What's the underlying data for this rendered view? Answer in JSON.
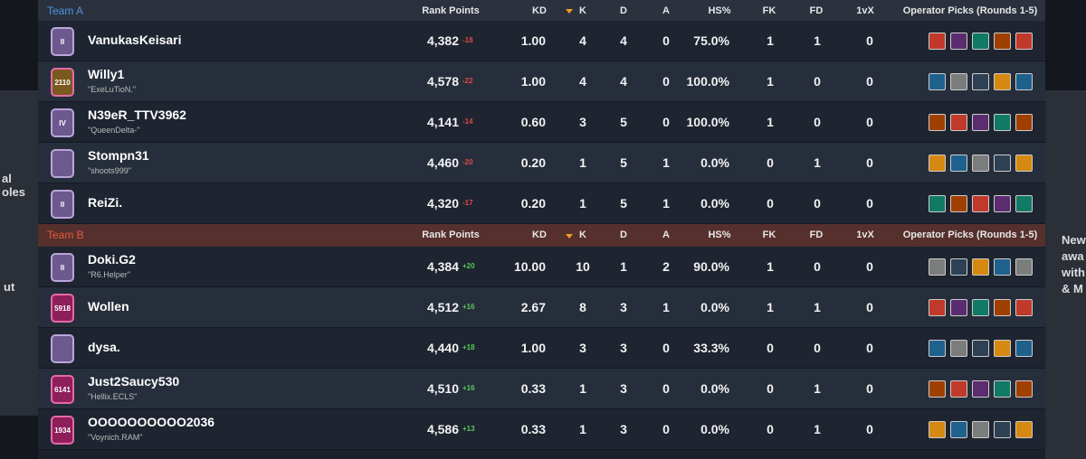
{
  "side_fragments": {
    "left": [
      "al",
      "oles",
      "ut"
    ],
    "right": [
      "New",
      "awa",
      "with",
      "& M"
    ]
  },
  "teams": [
    {
      "name": "Team A",
      "columns": {
        "rank_points": "Rank Points",
        "kd": "KD",
        "k": "K",
        "d": "D",
        "a": "A",
        "hs": "HS%",
        "fk": "FK",
        "fd": "FD",
        "onevx": "1vX",
        "operators": "Operator Picks (Rounds 1-5)"
      },
      "players": [
        {
          "badge": "II",
          "name": "VanukasKeisari",
          "rank_points": "4,382",
          "delta": "-18",
          "kd": "1.00",
          "k": "4",
          "d": "4",
          "a": "0",
          "hs": "75.0%",
          "fk": "1",
          "fd": "1",
          "onevx": "0"
        },
        {
          "badge": "2110",
          "name": "Willy1",
          "subtitle": "\"ExeLuTioN.\"",
          "rank_points": "4,578",
          "delta": "-22",
          "kd": "1.00",
          "k": "4",
          "d": "4",
          "a": "0",
          "hs": "100.0%",
          "fk": "1",
          "fd": "0",
          "onevx": "0"
        },
        {
          "badge": "IV",
          "name": "N39eR_TTV3962",
          "subtitle": "\"QueenDelta-\"",
          "rank_points": "4,141",
          "delta": "-14",
          "kd": "0.60",
          "k": "3",
          "d": "5",
          "a": "0",
          "hs": "100.0%",
          "fk": "1",
          "fd": "0",
          "onevx": "0"
        },
        {
          "name": "Stompn31",
          "subtitle": "\"shoots999\"",
          "rank_points": "4,460",
          "delta": "-20",
          "kd": "0.20",
          "k": "1",
          "d": "5",
          "a": "1",
          "hs": "0.0%",
          "fk": "0",
          "fd": "1",
          "onevx": "0"
        },
        {
          "badge": "II",
          "name": "ReiZi.",
          "rank_points": "4,320",
          "delta": "-17",
          "kd": "0.20",
          "k": "1",
          "d": "5",
          "a": "1",
          "hs": "0.0%",
          "fk": "0",
          "fd": "0",
          "onevx": "0"
        }
      ]
    },
    {
      "name": "Team B",
      "columns": {
        "rank_points": "Rank Points",
        "kd": "KD",
        "k": "K",
        "d": "D",
        "a": "A",
        "hs": "HS%",
        "fk": "FK",
        "fd": "FD",
        "onevx": "1vX",
        "operators": "Operator Picks (Rounds 1-5)"
      },
      "players": [
        {
          "badge": "II",
          "name": "Doki.G2",
          "subtitle": "\"R6.Helper\"",
          "rank_points": "4,384",
          "delta": "+20",
          "kd": "10.00",
          "k": "10",
          "d": "1",
          "a": "2",
          "hs": "90.0%",
          "fk": "1",
          "fd": "0",
          "onevx": "0"
        },
        {
          "badge": "5918",
          "name": "Wollen",
          "rank_points": "4,512",
          "delta": "+16",
          "kd": "2.67",
          "k": "8",
          "d": "3",
          "a": "1",
          "hs": "0.0%",
          "fk": "1",
          "fd": "1",
          "onevx": "0"
        },
        {
          "name": "dysa.",
          "rank_points": "4,440",
          "delta": "+18",
          "kd": "1.00",
          "k": "3",
          "d": "3",
          "a": "0",
          "hs": "33.3%",
          "fk": "0",
          "fd": "0",
          "onevx": "0"
        },
        {
          "badge": "6141",
          "name": "Just2Saucy530",
          "subtitle": "\"Hellix.ECLS\"",
          "rank_points": "4,510",
          "delta": "+16",
          "kd": "0.33",
          "k": "1",
          "d": "3",
          "a": "0",
          "hs": "0.0%",
          "fk": "0",
          "fd": "1",
          "onevx": "0"
        },
        {
          "badge": "1934",
          "name": "OOOOOOOOOO2036",
          "subtitle": "\"Voynich.RAM\"",
          "rank_points": "4,586",
          "delta": "+13",
          "kd": "0.33",
          "k": "1",
          "d": "3",
          "a": "0",
          "hs": "0.0%",
          "fk": "0",
          "fd": "1",
          "onevx": "0"
        }
      ]
    }
  ]
}
